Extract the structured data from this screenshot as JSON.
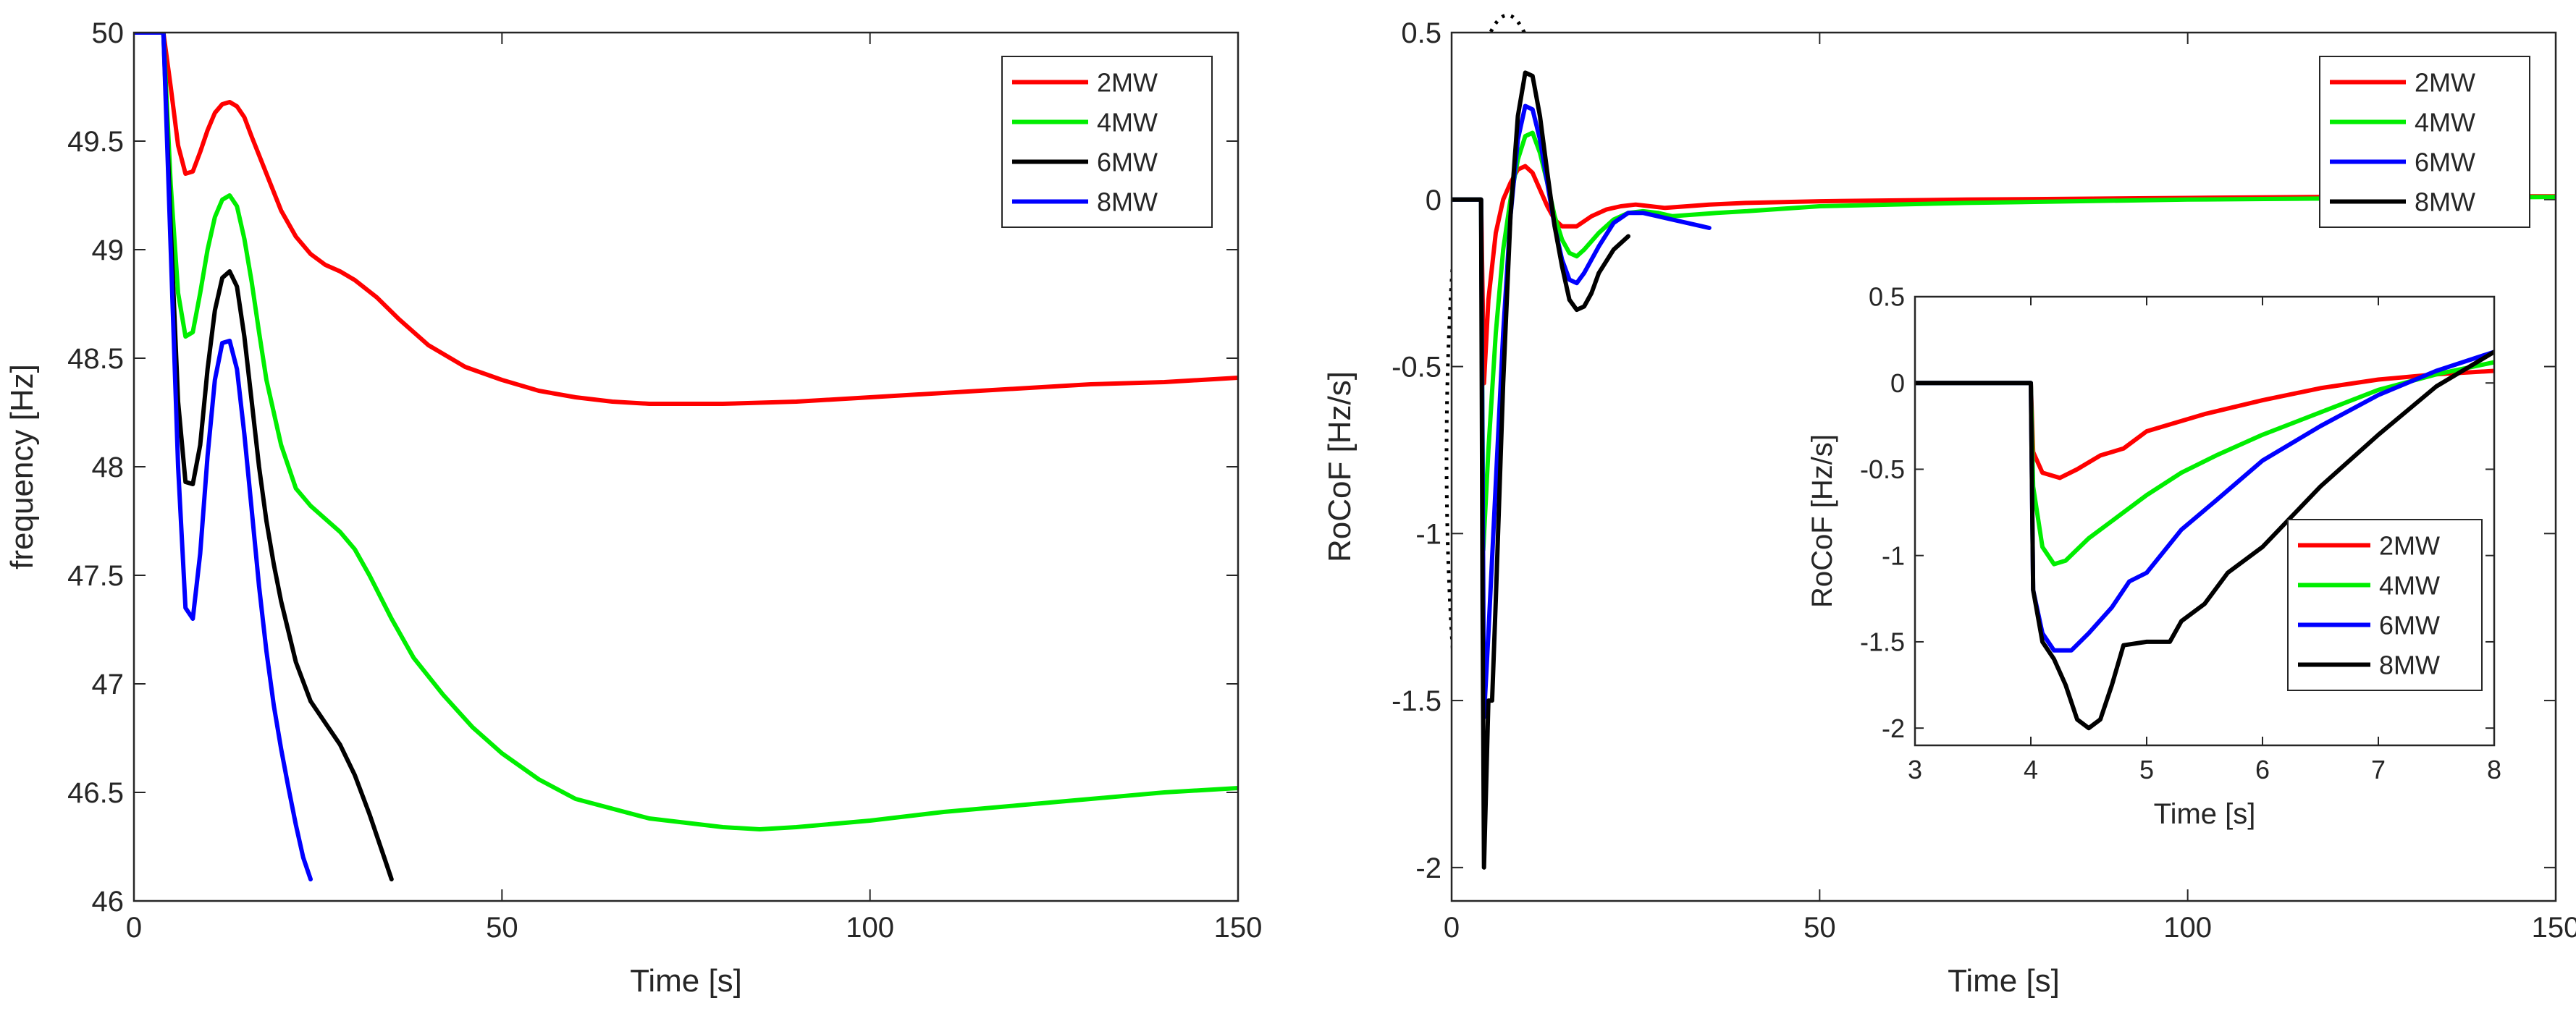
{
  "chart_data": [
    {
      "type": "line",
      "title": "",
      "xlabel": "Time [s]",
      "ylabel": "frequency [Hz]",
      "xlim": [
        0,
        150
      ],
      "ylim": [
        46,
        50
      ],
      "xticks": [
        "0",
        "50",
        "100",
        "150"
      ],
      "yticks": [
        "46",
        "46.5",
        "47",
        "47.5",
        "48",
        "48.5",
        "49",
        "49.5",
        "50"
      ],
      "legend": "top-right",
      "series": [
        {
          "name": "2MW",
          "color": "#ff0000",
          "x": [
            0,
            4,
            5,
            6,
            7,
            8,
            9,
            10,
            11,
            12,
            13,
            14,
            15,
            16,
            18,
            20,
            22,
            24,
            26,
            28,
            30,
            33,
            36,
            40,
            45,
            50,
            55,
            60,
            65,
            70,
            80,
            90,
            100,
            110,
            120,
            130,
            140,
            150
          ],
          "values": [
            50,
            50,
            49.75,
            49.48,
            49.35,
            49.36,
            49.45,
            49.55,
            49.63,
            49.67,
            49.68,
            49.66,
            49.61,
            49.52,
            49.35,
            49.18,
            49.06,
            48.98,
            48.93,
            48.9,
            48.86,
            48.78,
            48.68,
            48.56,
            48.46,
            48.4,
            48.35,
            48.32,
            48.3,
            48.29,
            48.29,
            48.3,
            48.32,
            48.34,
            48.36,
            48.38,
            48.39,
            48.41
          ]
        },
        {
          "name": "4MW",
          "color": "#00ee00",
          "x": [
            0,
            4,
            5,
            6,
            7,
            8,
            9,
            10,
            11,
            12,
            13,
            14,
            15,
            16,
            17,
            18,
            20,
            22,
            24,
            26,
            28,
            30,
            32,
            35,
            38,
            42,
            46,
            50,
            55,
            60,
            70,
            80,
            85,
            90,
            100,
            110,
            120,
            130,
            140,
            150
          ],
          "values": [
            50,
            50,
            49.3,
            48.8,
            48.6,
            48.62,
            48.8,
            49.0,
            49.15,
            49.23,
            49.25,
            49.2,
            49.05,
            48.85,
            48.62,
            48.4,
            48.1,
            47.9,
            47.82,
            47.76,
            47.7,
            47.62,
            47.5,
            47.3,
            47.12,
            46.95,
            46.8,
            46.68,
            46.56,
            46.47,
            46.38,
            46.34,
            46.33,
            46.34,
            46.37,
            46.41,
            46.44,
            46.47,
            46.5,
            46.52
          ]
        },
        {
          "name": "6MW",
          "color": "#000000",
          "x": [
            0,
            4,
            5,
            6,
            7,
            8,
            9,
            10,
            11,
            12,
            13,
            14,
            15,
            16,
            17,
            18,
            19,
            20,
            22,
            24,
            26,
            28,
            30,
            32,
            34,
            35
          ],
          "values": [
            50,
            50,
            49.1,
            48.3,
            47.93,
            47.92,
            48.1,
            48.45,
            48.72,
            48.87,
            48.9,
            48.83,
            48.6,
            48.3,
            48.0,
            47.75,
            47.55,
            47.38,
            47.1,
            46.92,
            46.82,
            46.72,
            46.58,
            46.4,
            46.2,
            46.1
          ]
        },
        {
          "name": "8MW",
          "color": "#0000ff",
          "x": [
            0,
            4,
            5,
            6,
            7,
            8,
            9,
            10,
            11,
            12,
            13,
            14,
            15,
            16,
            17,
            18,
            19,
            20,
            21,
            22,
            23,
            24
          ],
          "values": [
            50,
            50,
            49.0,
            48.0,
            47.35,
            47.3,
            47.6,
            48.05,
            48.4,
            48.57,
            48.58,
            48.45,
            48.15,
            47.8,
            47.45,
            47.15,
            46.9,
            46.7,
            46.52,
            46.35,
            46.2,
            46.1
          ]
        }
      ]
    },
    {
      "type": "line",
      "title": "",
      "xlabel": "Time [s]",
      "ylabel": "RoCoF [Hz/s]",
      "xlim": [
        0,
        150
      ],
      "ylim": [
        -2.1,
        0.5
      ],
      "xticks": [
        "0",
        "50",
        "100",
        "150"
      ],
      "yticks": [
        "-2",
        "-1.5",
        "-1",
        "-0.5",
        "0",
        "0.5"
      ],
      "legend": "top-right",
      "series": [
        {
          "name": "2MW",
          "color": "#ff0000",
          "x": [
            0,
            4,
            4.4,
            5,
            6,
            7,
            8,
            9,
            10,
            11,
            12,
            13,
            14,
            15,
            17,
            19,
            21,
            23,
            25,
            27,
            29,
            32,
            35,
            40,
            50,
            70,
            100,
            130,
            150
          ],
          "values": [
            0,
            0,
            -0.55,
            -0.3,
            -0.1,
            0.0,
            0.05,
            0.09,
            0.1,
            0.08,
            0.03,
            -0.02,
            -0.06,
            -0.08,
            -0.08,
            -0.05,
            -0.03,
            -0.02,
            -0.015,
            -0.02,
            -0.025,
            -0.02,
            -0.015,
            -0.01,
            -0.005,
            0,
            0.005,
            0.01,
            0.01
          ]
        },
        {
          "name": "4MW",
          "color": "#00ee00",
          "x": [
            0,
            4,
            4.3,
            5,
            6,
            7,
            8,
            9,
            10,
            11,
            12,
            13,
            14,
            15,
            16,
            17,
            18,
            20,
            22,
            24,
            26,
            28,
            30,
            33,
            36,
            40,
            50,
            70,
            100,
            130,
            150
          ],
          "values": [
            0,
            0,
            -1.05,
            -0.75,
            -0.4,
            -0.15,
            0.0,
            0.12,
            0.19,
            0.2,
            0.14,
            0.05,
            -0.05,
            -0.12,
            -0.16,
            -0.17,
            -0.15,
            -0.1,
            -0.06,
            -0.04,
            -0.035,
            -0.04,
            -0.05,
            -0.045,
            -0.04,
            -0.035,
            -0.02,
            -0.01,
            0,
            0.005,
            0.008
          ]
        },
        {
          "name": "6MW",
          "color": "#0000ff",
          "x": [
            0,
            4,
            4.4,
            5,
            6,
            7,
            8,
            9,
            10,
            11,
            12,
            13,
            14,
            15,
            16,
            17,
            18,
            20,
            22,
            24,
            26,
            28,
            30,
            32,
            34,
            35
          ],
          "values": [
            0,
            0,
            -1.55,
            -1.3,
            -0.85,
            -0.4,
            -0.05,
            0.18,
            0.28,
            0.27,
            0.18,
            0.05,
            -0.08,
            -0.18,
            -0.24,
            -0.25,
            -0.22,
            -0.14,
            -0.07,
            -0.04,
            -0.04,
            -0.05,
            -0.06,
            -0.07,
            -0.08,
            -0.085
          ]
        },
        {
          "name": "8MW",
          "color": "#000000",
          "x": [
            0,
            4,
            4.2,
            4.4,
            5,
            5.5,
            6,
            7,
            8,
            9,
            10,
            11,
            12,
            13,
            14,
            15,
            16,
            17,
            18,
            19,
            20,
            22,
            24
          ],
          "values": [
            0,
            0,
            -1.2,
            -2.0,
            -1.5,
            -1.5,
            -1.2,
            -0.55,
            -0.05,
            0.25,
            0.38,
            0.37,
            0.25,
            0.08,
            -0.08,
            -0.2,
            -0.3,
            -0.33,
            -0.32,
            -0.28,
            -0.22,
            -0.15,
            -0.11
          ]
        }
      ]
    },
    {
      "type": "line",
      "title": "",
      "xlabel": "Time [s]",
      "ylabel": "RoCoF [Hz/s]",
      "xlim": [
        3,
        8
      ],
      "ylim": [
        -2.1,
        0.5
      ],
      "xticks": [
        "3",
        "4",
        "5",
        "6",
        "7",
        "8"
      ],
      "yticks": [
        "-2",
        "-1.5",
        "-1",
        "-0.5",
        "0",
        "0.5"
      ],
      "legend": "lower-right",
      "series": [
        {
          "name": "2MW",
          "color": "#ff0000",
          "x": [
            3,
            4,
            4.02,
            4.1,
            4.25,
            4.4,
            4.6,
            4.8,
            5.0,
            5.5,
            6.0,
            6.5,
            7.0,
            7.5,
            8.0
          ],
          "values": [
            0,
            0,
            -0.4,
            -0.52,
            -0.55,
            -0.5,
            -0.42,
            -0.38,
            -0.28,
            -0.18,
            -0.1,
            -0.03,
            0.02,
            0.05,
            0.07
          ]
        },
        {
          "name": "4MW",
          "color": "#00ee00",
          "x": [
            3,
            4,
            4.02,
            4.1,
            4.2,
            4.3,
            4.5,
            4.7,
            5.0,
            5.3,
            5.6,
            6.0,
            6.5,
            7.0,
            7.5,
            8.0
          ],
          "values": [
            0,
            0,
            -0.6,
            -0.95,
            -1.05,
            -1.03,
            -0.9,
            -0.8,
            -0.65,
            -0.52,
            -0.42,
            -0.3,
            -0.17,
            -0.04,
            0.05,
            0.12
          ]
        },
        {
          "name": "6MW",
          "color": "#0000ff",
          "x": [
            3,
            4,
            4.02,
            4.1,
            4.2,
            4.35,
            4.5,
            4.7,
            4.85,
            5.0,
            5.3,
            5.6,
            6.0,
            6.5,
            7.0,
            7.5,
            8.0
          ],
          "values": [
            0,
            0,
            -1.2,
            -1.45,
            -1.55,
            -1.55,
            -1.45,
            -1.3,
            -1.15,
            -1.1,
            -0.85,
            -0.68,
            -0.45,
            -0.25,
            -0.07,
            0.07,
            0.18
          ]
        },
        {
          "name": "8MW",
          "color": "#000000",
          "x": [
            3,
            4,
            4.02,
            4.1,
            4.2,
            4.3,
            4.4,
            4.5,
            4.6,
            4.7,
            4.8,
            5.0,
            5.2,
            5.3,
            5.5,
            5.7,
            6.0,
            6.5,
            7.0,
            7.5,
            8.0
          ],
          "values": [
            0,
            0,
            -1.2,
            -1.5,
            -1.6,
            -1.75,
            -1.95,
            -2.0,
            -1.95,
            -1.75,
            -1.52,
            -1.5,
            -1.5,
            -1.38,
            -1.28,
            -1.1,
            -0.95,
            -0.6,
            -0.3,
            -0.02,
            0.18
          ]
        }
      ]
    }
  ]
}
